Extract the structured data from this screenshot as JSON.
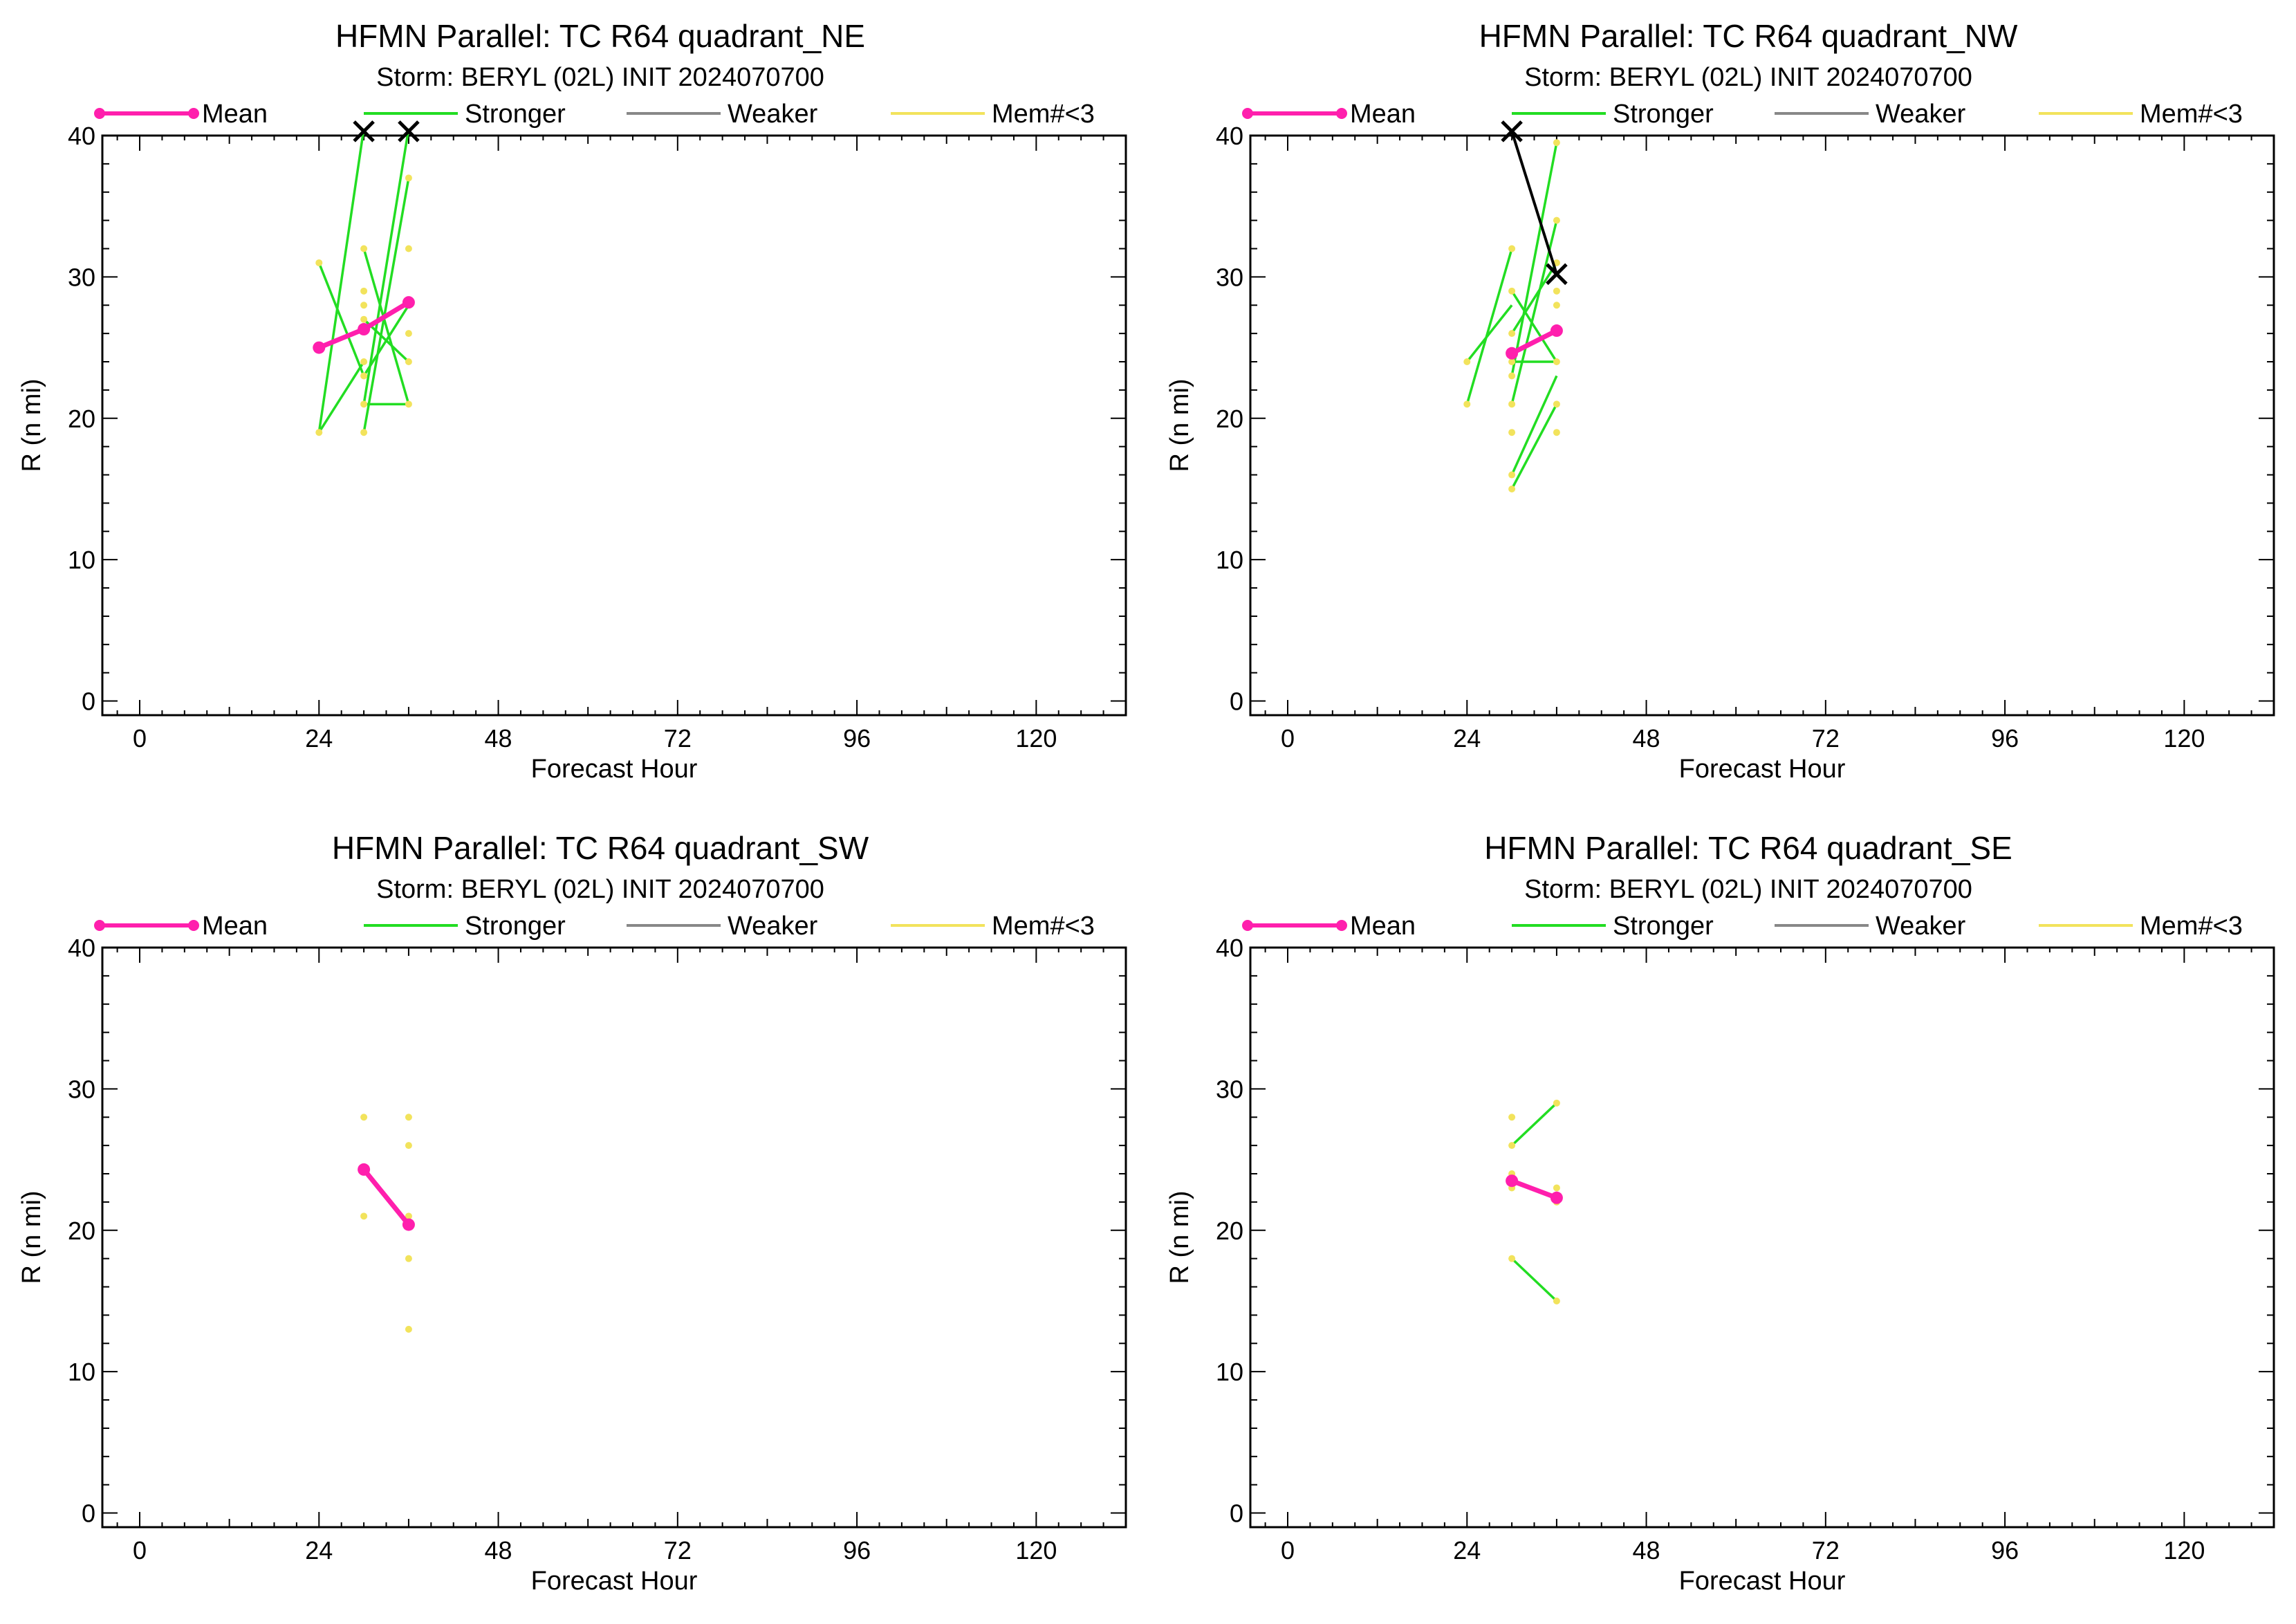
{
  "figure": {
    "title_prefix": "HFMN Parallel: TC  R64 quadrant_",
    "subtitle": "Storm: BERYL (02L) INIT 2024070700"
  },
  "legend": [
    {
      "key": "mean",
      "label": "Mean",
      "color": "#ff1fad"
    },
    {
      "key": "stronger",
      "label": "Stronger",
      "color": "#22dd22"
    },
    {
      "key": "weaker",
      "label": "Weaker",
      "color": "#888888"
    },
    {
      "key": "mem",
      "label": "Mem#<3",
      "color": "#f2e35c"
    }
  ],
  "colors": {
    "mean": "#ff1fad",
    "stronger": "#22dd22",
    "weaker": "#888888",
    "mem": "#f2e35c",
    "best_track": "#000000",
    "axis": "#000000"
  },
  "chart_data": [
    {
      "type": "line",
      "title": "HFMN Parallel: TC  R64 quadrant_NE",
      "subtitle": "Storm: BERYL (02L) INIT 2024070700",
      "xlabel": "Forecast Hour",
      "ylabel": "R (n mi)",
      "xlim": [
        -5,
        132
      ],
      "ylim": [
        -1,
        40
      ],
      "xticks": [
        0,
        24,
        48,
        72,
        96,
        120
      ],
      "yticks": [
        0,
        10,
        20,
        30,
        40
      ],
      "mean": {
        "x": [
          24,
          30,
          36
        ],
        "y": [
          25,
          26.3,
          28.2
        ]
      },
      "stronger": [
        {
          "x": [
            24,
            30
          ],
          "y": [
            31,
            23
          ]
        },
        {
          "x": [
            24,
            30
          ],
          "y": [
            19,
            24
          ]
        },
        {
          "x": [
            24,
            30
          ],
          "y": [
            19,
            40.5
          ]
        },
        {
          "x": [
            30,
            36
          ],
          "y": [
            32,
            21
          ]
        },
        {
          "x": [
            30,
            36
          ],
          "y": [
            19,
            37
          ]
        },
        {
          "x": [
            30,
            36
          ],
          "y": [
            21,
            21
          ]
        },
        {
          "x": [
            30,
            36
          ],
          "y": [
            23,
            28
          ]
        },
        {
          "x": [
            30,
            36
          ],
          "y": [
            21,
            40.5
          ]
        },
        {
          "x": [
            30,
            36
          ],
          "y": [
            27,
            24
          ]
        }
      ],
      "members": [
        {
          "x": 24,
          "y": 19
        },
        {
          "x": 24,
          "y": 31
        },
        {
          "x": 30,
          "y": 19
        },
        {
          "x": 30,
          "y": 21
        },
        {
          "x": 30,
          "y": 23
        },
        {
          "x": 30,
          "y": 24
        },
        {
          "x": 30,
          "y": 27
        },
        {
          "x": 30,
          "y": 28
        },
        {
          "x": 30,
          "y": 29
        },
        {
          "x": 30,
          "y": 32
        },
        {
          "x": 36,
          "y": 21
        },
        {
          "x": 36,
          "y": 24
        },
        {
          "x": 36,
          "y": 26
        },
        {
          "x": 36,
          "y": 28
        },
        {
          "x": 36,
          "y": 32
        },
        {
          "x": 36,
          "y": 37
        }
      ],
      "best_track": {
        "x": [
          30,
          36
        ],
        "y": [
          40.3,
          40.3
        ],
        "connect": false
      }
    },
    {
      "type": "line",
      "title": "HFMN Parallel: TC  R64 quadrant_NW",
      "subtitle": "Storm: BERYL (02L) INIT 2024070700",
      "xlabel": "Forecast Hour",
      "ylabel": "R (n mi)",
      "xlim": [
        -5,
        132
      ],
      "ylim": [
        -1,
        40
      ],
      "xticks": [
        0,
        24,
        48,
        72,
        96,
        120
      ],
      "yticks": [
        0,
        10,
        20,
        30,
        40
      ],
      "mean": {
        "x": [
          30,
          36
        ],
        "y": [
          24.6,
          26.2
        ]
      },
      "stronger": [
        {
          "x": [
            24,
            30
          ],
          "y": [
            21,
            32
          ]
        },
        {
          "x": [
            24,
            30
          ],
          "y": [
            24,
            28
          ]
        },
        {
          "x": [
            30,
            36
          ],
          "y": [
            15,
            21
          ]
        },
        {
          "x": [
            30,
            36
          ],
          "y": [
            16,
            23
          ]
        },
        {
          "x": [
            30,
            36
          ],
          "y": [
            21,
            34
          ]
        },
        {
          "x": [
            30,
            36
          ],
          "y": [
            23,
            39.5
          ]
        },
        {
          "x": [
            30,
            36
          ],
          "y": [
            24,
            24
          ]
        },
        {
          "x": [
            30,
            36
          ],
          "y": [
            29,
            24
          ]
        },
        {
          "x": [
            30,
            36
          ],
          "y": [
            26,
            31
          ]
        }
      ],
      "members": [
        {
          "x": 24,
          "y": 21
        },
        {
          "x": 24,
          "y": 24
        },
        {
          "x": 30,
          "y": 15
        },
        {
          "x": 30,
          "y": 16
        },
        {
          "x": 30,
          "y": 19
        },
        {
          "x": 30,
          "y": 21
        },
        {
          "x": 30,
          "y": 23
        },
        {
          "x": 30,
          "y": 24
        },
        {
          "x": 30,
          "y": 26
        },
        {
          "x": 30,
          "y": 29
        },
        {
          "x": 30,
          "y": 32
        },
        {
          "x": 36,
          "y": 19
        },
        {
          "x": 36,
          "y": 21
        },
        {
          "x": 36,
          "y": 24
        },
        {
          "x": 36,
          "y": 28
        },
        {
          "x": 36,
          "y": 29
        },
        {
          "x": 36,
          "y": 31
        },
        {
          "x": 36,
          "y": 34
        },
        {
          "x": 36,
          "y": 39.5
        }
      ],
      "best_track": {
        "x": [
          30,
          36
        ],
        "y": [
          40.3,
          30.2
        ],
        "connect": true
      }
    },
    {
      "type": "line",
      "title": "HFMN Parallel: TC  R64 quadrant_SW",
      "subtitle": "Storm: BERYL (02L) INIT 2024070700",
      "xlabel": "Forecast Hour",
      "ylabel": "R (n mi)",
      "xlim": [
        -5,
        132
      ],
      "ylim": [
        -1,
        40
      ],
      "xticks": [
        0,
        24,
        48,
        72,
        96,
        120
      ],
      "yticks": [
        0,
        10,
        20,
        30,
        40
      ],
      "mean": {
        "x": [
          30,
          36
        ],
        "y": [
          24.3,
          20.4
        ]
      },
      "stronger": [],
      "members": [
        {
          "x": 30,
          "y": 21
        },
        {
          "x": 30,
          "y": 28
        },
        {
          "x": 36,
          "y": 13
        },
        {
          "x": 36,
          "y": 18
        },
        {
          "x": 36,
          "y": 21
        },
        {
          "x": 36,
          "y": 26
        },
        {
          "x": 36,
          "y": 28
        }
      ],
      "best_track": {
        "x": [],
        "y": [],
        "connect": false
      }
    },
    {
      "type": "line",
      "title": "HFMN Parallel: TC  R64 quadrant_SE",
      "subtitle": "Storm: BERYL (02L) INIT 2024070700",
      "xlabel": "Forecast Hour",
      "ylabel": "R (n mi)",
      "xlim": [
        -5,
        132
      ],
      "ylim": [
        -1,
        40
      ],
      "xticks": [
        0,
        24,
        48,
        72,
        96,
        120
      ],
      "yticks": [
        0,
        10,
        20,
        30,
        40
      ],
      "mean": {
        "x": [
          30,
          36
        ],
        "y": [
          23.5,
          22.3
        ]
      },
      "stronger": [
        {
          "x": [
            30,
            36
          ],
          "y": [
            26,
            29
          ]
        },
        {
          "x": [
            30,
            36
          ],
          "y": [
            18,
            15
          ]
        }
      ],
      "members": [
        {
          "x": 30,
          "y": 18
        },
        {
          "x": 30,
          "y": 23
        },
        {
          "x": 30,
          "y": 24
        },
        {
          "x": 30,
          "y": 26
        },
        {
          "x": 30,
          "y": 28
        },
        {
          "x": 36,
          "y": 15
        },
        {
          "x": 36,
          "y": 22
        },
        {
          "x": 36,
          "y": 23
        },
        {
          "x": 36,
          "y": 29
        }
      ],
      "best_track": {
        "x": [],
        "y": [],
        "connect": false
      }
    }
  ]
}
